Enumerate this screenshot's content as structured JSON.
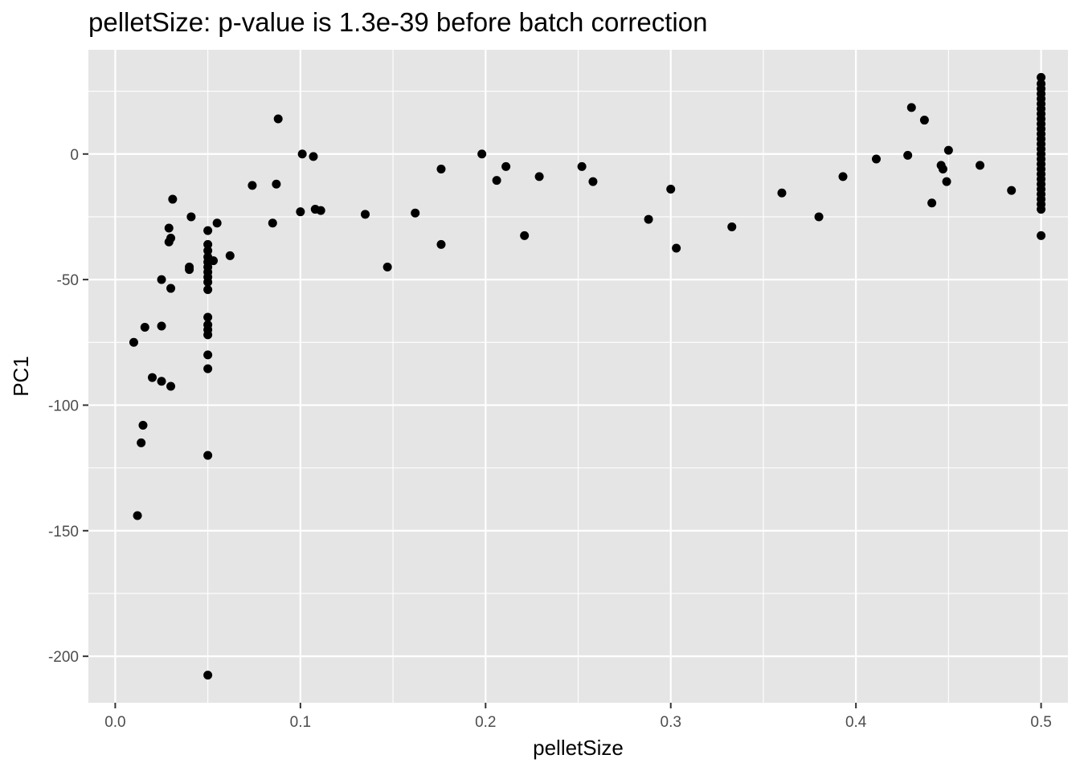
{
  "chart_data": {
    "type": "scatter",
    "title": "pelletSize: p-value is 1.3e-39 before batch correction",
    "xlabel": "pelletSize",
    "ylabel": "PC1",
    "xlim": [
      -0.0145,
      0.5145
    ],
    "ylim": [
      -218.5,
      41.5
    ],
    "x_ticks": [
      0.0,
      0.1,
      0.2,
      0.3,
      0.4,
      0.5
    ],
    "x_tick_labels": [
      "0.0",
      "0.1",
      "0.2",
      "0.3",
      "0.4",
      "0.5"
    ],
    "y_ticks": [
      0,
      -50,
      -100,
      -150,
      -200
    ],
    "y_tick_labels": [
      "0",
      "-50",
      "-100",
      "-150",
      "-200"
    ],
    "x_minor": [
      0.05,
      0.15,
      0.25,
      0.35,
      0.45
    ],
    "y_minor": [
      25,
      -25,
      -75,
      -125,
      -175
    ],
    "grid": true,
    "background": "#e5e5e5",
    "grid_color": "#ffffff",
    "point_color": "#000000",
    "points": [
      [
        0.01,
        -75
      ],
      [
        0.012,
        -144
      ],
      [
        0.014,
        -115
      ],
      [
        0.015,
        -108
      ],
      [
        0.016,
        -69
      ],
      [
        0.02,
        -89
      ],
      [
        0.025,
        -50
      ],
      [
        0.025,
        -68.5
      ],
      [
        0.025,
        -90.5
      ],
      [
        0.029,
        -29.5
      ],
      [
        0.029,
        -35
      ],
      [
        0.03,
        -33.5
      ],
      [
        0.03,
        -53.5
      ],
      [
        0.03,
        -92.5
      ],
      [
        0.031,
        -18
      ],
      [
        0.04,
        -45
      ],
      [
        0.04,
        -46
      ],
      [
        0.041,
        -25
      ],
      [
        0.05,
        -30.5
      ],
      [
        0.05,
        -36
      ],
      [
        0.05,
        -38.5
      ],
      [
        0.05,
        -41
      ],
      [
        0.05,
        -43
      ],
      [
        0.05,
        -45
      ],
      [
        0.05,
        -47
      ],
      [
        0.05,
        -49
      ],
      [
        0.05,
        -51
      ],
      [
        0.05,
        -54
      ],
      [
        0.05,
        -65
      ],
      [
        0.05,
        -68
      ],
      [
        0.05,
        -70
      ],
      [
        0.05,
        -72
      ],
      [
        0.05,
        -80
      ],
      [
        0.05,
        -85.5
      ],
      [
        0.05,
        -120
      ],
      [
        0.05,
        -207.5
      ],
      [
        0.053,
        -42.5
      ],
      [
        0.055,
        -27.5
      ],
      [
        0.062,
        -40.5
      ],
      [
        0.074,
        -12.5
      ],
      [
        0.085,
        -27.5
      ],
      [
        0.087,
        -12
      ],
      [
        0.088,
        14
      ],
      [
        0.1,
        -23
      ],
      [
        0.101,
        0
      ],
      [
        0.107,
        -1
      ],
      [
        0.108,
        -22
      ],
      [
        0.111,
        -22.5
      ],
      [
        0.135,
        -24
      ],
      [
        0.147,
        -45
      ],
      [
        0.162,
        -23.5
      ],
      [
        0.176,
        -6
      ],
      [
        0.176,
        -36
      ],
      [
        0.198,
        0
      ],
      [
        0.206,
        -10.5
      ],
      [
        0.211,
        -5
      ],
      [
        0.221,
        -32.5
      ],
      [
        0.229,
        -9
      ],
      [
        0.252,
        -5
      ],
      [
        0.258,
        -11
      ],
      [
        0.288,
        -26
      ],
      [
        0.3,
        -14
      ],
      [
        0.303,
        -37.5
      ],
      [
        0.333,
        -29
      ],
      [
        0.36,
        -15.5
      ],
      [
        0.38,
        -25
      ],
      [
        0.393,
        -9
      ],
      [
        0.411,
        -2
      ],
      [
        0.428,
        -0.5
      ],
      [
        0.43,
        18.5
      ],
      [
        0.437,
        13.5
      ],
      [
        0.441,
        -19.5
      ],
      [
        0.446,
        -4.5
      ],
      [
        0.447,
        -6
      ],
      [
        0.449,
        -11
      ],
      [
        0.45,
        1.5
      ],
      [
        0.467,
        -4.5
      ],
      [
        0.484,
        -14.5
      ],
      [
        0.5,
        30.5
      ],
      [
        0.5,
        28
      ],
      [
        0.5,
        26
      ],
      [
        0.5,
        24
      ],
      [
        0.5,
        22
      ],
      [
        0.5,
        20
      ],
      [
        0.5,
        18
      ],
      [
        0.5,
        16
      ],
      [
        0.5,
        14
      ],
      [
        0.5,
        12
      ],
      [
        0.5,
        10
      ],
      [
        0.5,
        8
      ],
      [
        0.5,
        6
      ],
      [
        0.5,
        4
      ],
      [
        0.5,
        2
      ],
      [
        0.5,
        0
      ],
      [
        0.5,
        -2
      ],
      [
        0.5,
        -4
      ],
      [
        0.5,
        -6
      ],
      [
        0.5,
        -8
      ],
      [
        0.5,
        -10
      ],
      [
        0.5,
        -12
      ],
      [
        0.5,
        -14
      ],
      [
        0.5,
        -16
      ],
      [
        0.5,
        -18
      ],
      [
        0.5,
        -20
      ],
      [
        0.5,
        -22
      ],
      [
        0.5,
        -32.5
      ]
    ]
  }
}
